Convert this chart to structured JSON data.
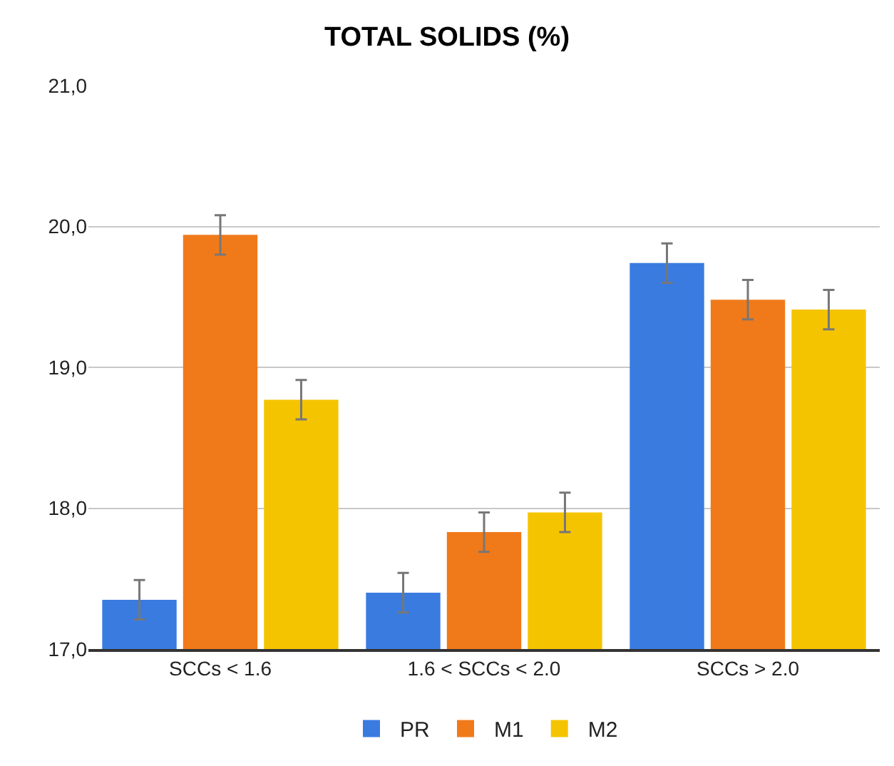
{
  "chart_data": {
    "type": "bar",
    "title": "TOTAL SOLIDS (%)",
    "categories": [
      "SCCs < 1.6",
      "1.6 < SCCs < 2.0",
      "SCCs > 2.0"
    ],
    "series": [
      {
        "name": "PR",
        "color": "#3a7be0",
        "values": [
          17.35,
          17.4,
          19.74
        ],
        "errors": [
          0.14,
          0.14,
          0.14
        ]
      },
      {
        "name": "M1",
        "color": "#f07a1a",
        "values": [
          19.94,
          17.83,
          19.48
        ],
        "errors": [
          0.14,
          0.14,
          0.14
        ]
      },
      {
        "name": "M2",
        "color": "#f5c400",
        "values": [
          18.77,
          17.97,
          19.41
        ],
        "errors": [
          0.14,
          0.14,
          0.14
        ]
      }
    ],
    "ylim": [
      17,
      21
    ],
    "yticks": [
      {
        "value": 17,
        "label": "17,0"
      },
      {
        "value": 18,
        "label": "18,0"
      },
      {
        "value": 19,
        "label": "19,0"
      },
      {
        "value": 20,
        "label": "20,0"
      },
      {
        "value": 21,
        "label": "21,0"
      }
    ],
    "grid": "y",
    "legend": "bottom"
  }
}
